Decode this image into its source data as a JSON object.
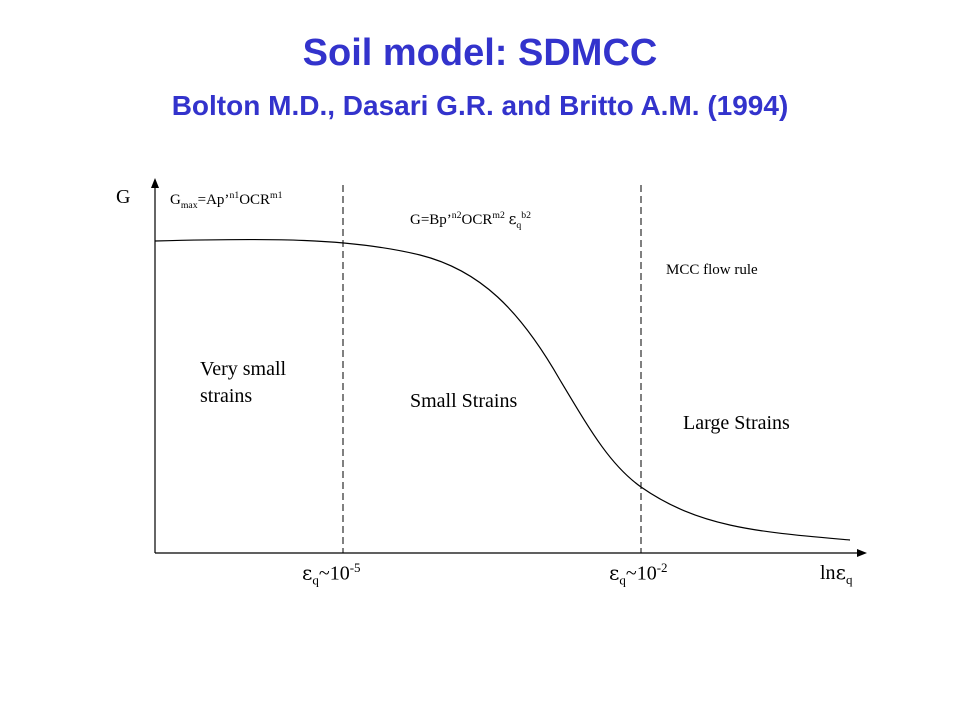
{
  "slide": {
    "title": "Soil model: SDMCC",
    "subtitle": "Bolton M.D., Dasari G.R. and Britto A.M. (1994)"
  },
  "colors": {
    "title": "#3333cc",
    "axes": "#000000",
    "curve": "#000000"
  },
  "chart_data": {
    "type": "line",
    "x_axis": {
      "label_var": "ln",
      "label_sym": "ε",
      "label_sub": "q"
    },
    "y_axis": {
      "label": "G"
    },
    "thresholds": [
      {
        "sym": "ε",
        "sub": "q",
        "text": "~10",
        "exp": "-5"
      },
      {
        "sym": "ε",
        "sub": "q",
        "text": "~10",
        "exp": "-2"
      }
    ],
    "regions": {
      "very_small_line1": "Very small",
      "very_small_line2": "strains",
      "small": "Small Strains",
      "large": "Large Strains"
    },
    "formulas": {
      "gmax": {
        "g": "G",
        "g_sub": "max",
        "mid": "=Ap’",
        "n1": "n1",
        "ocr": "OCR",
        "m1": "m1"
      },
      "g_small": {
        "g": "G=Bp’",
        "n2": "n2",
        "ocr": "OCR",
        "m2": "m2",
        "sym": "ε",
        "sub": "q",
        "b2": "b2"
      },
      "mcc": "MCC flow rule"
    }
  }
}
